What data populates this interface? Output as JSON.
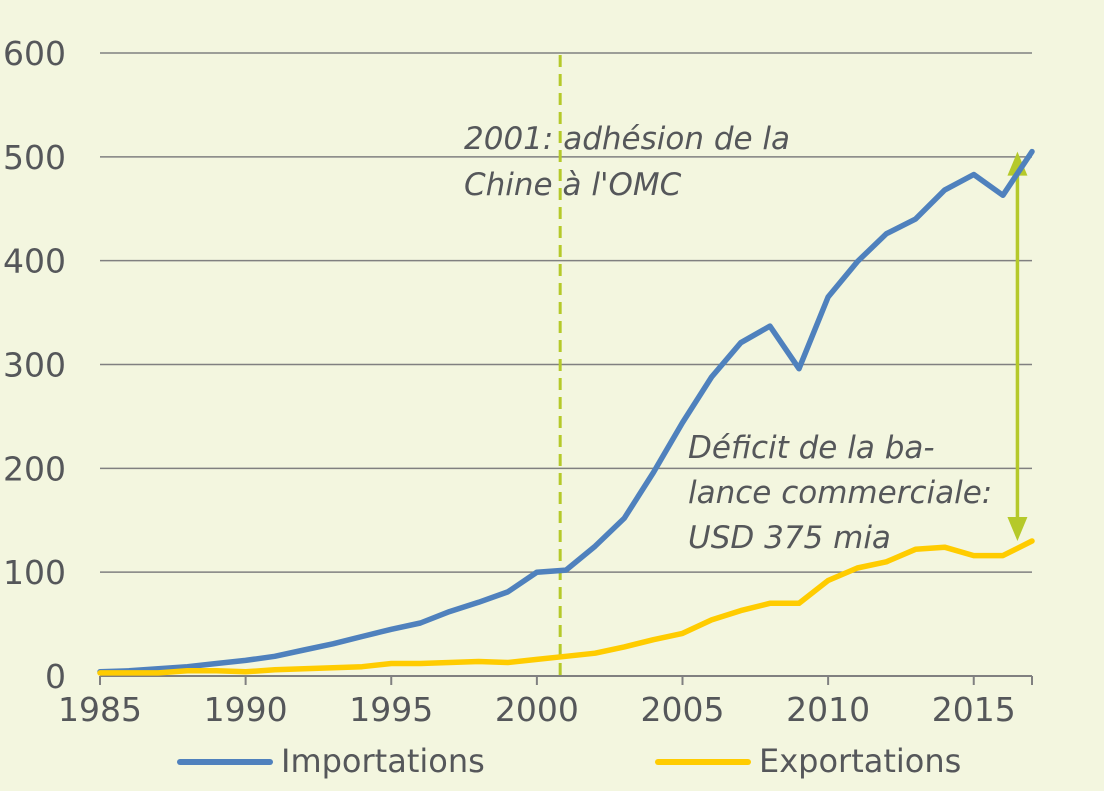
{
  "chart_data": {
    "type": "line",
    "x": [
      1985,
      1986,
      1987,
      1988,
      1989,
      1990,
      1991,
      1992,
      1993,
      1994,
      1995,
      1996,
      1997,
      1998,
      1999,
      2000,
      2001,
      2002,
      2003,
      2004,
      2005,
      2006,
      2007,
      2008,
      2009,
      2010,
      2011,
      2012,
      2013,
      2014,
      2015,
      2016,
      2017
    ],
    "series": [
      {
        "name": "Importations",
        "color": "#4f81bd",
        "values": [
          4,
          5,
          7,
          9,
          12,
          15,
          19,
          25,
          31,
          38,
          45,
          51,
          62,
          71,
          81,
          100,
          102,
          125,
          152,
          196,
          244,
          288,
          321,
          337,
          296,
          365,
          399,
          426,
          440,
          468,
          483,
          463,
          505
        ]
      },
      {
        "name": "Exportations",
        "color": "#ffcc00",
        "values": [
          3,
          3,
          3,
          5,
          5,
          4,
          6,
          7,
          8,
          9,
          12,
          12,
          13,
          14,
          13,
          16,
          19,
          22,
          28,
          35,
          41,
          54,
          63,
          70,
          70,
          92,
          104,
          110,
          122,
          124,
          116,
          116,
          130
        ]
      }
    ],
    "title": "",
    "xlabel": "",
    "ylabel": "",
    "xlim": [
      1985,
      2017
    ],
    "ylim": [
      0,
      600
    ],
    "x_ticks": [
      "1985",
      "1990",
      "1995",
      "2000",
      "2005",
      "2010",
      "2015"
    ],
    "x_tick_values": [
      1985,
      1990,
      1995,
      2000,
      2005,
      2010,
      2015
    ],
    "y_ticks": [
      "0",
      "100",
      "200",
      "300",
      "400",
      "500",
      "600"
    ],
    "y_tick_values": [
      0,
      100,
      200,
      300,
      400,
      500,
      600
    ],
    "grid": "horizontal",
    "legend_position": "bottom",
    "annotations": [
      {
        "id": "wto",
        "lines": [
          "2001: adhésion de la",
          "Chine à l'OMC"
        ],
        "vline_x": 2000.8,
        "vline_color": "#b5c92a",
        "vline_style": "dashed"
      },
      {
        "id": "deficit",
        "lines": [
          "Déficit de la ba-",
          "lance commerciale:",
          "USD 375 mia"
        ],
        "arrow_x": 2016.5,
        "arrow_from": 130,
        "arrow_to": 505,
        "arrow_color": "#b5c92a"
      }
    ],
    "colors": {
      "background": "#f3f6df",
      "grid": "#808080",
      "axis": "#808080",
      "text": "#55575a"
    }
  }
}
